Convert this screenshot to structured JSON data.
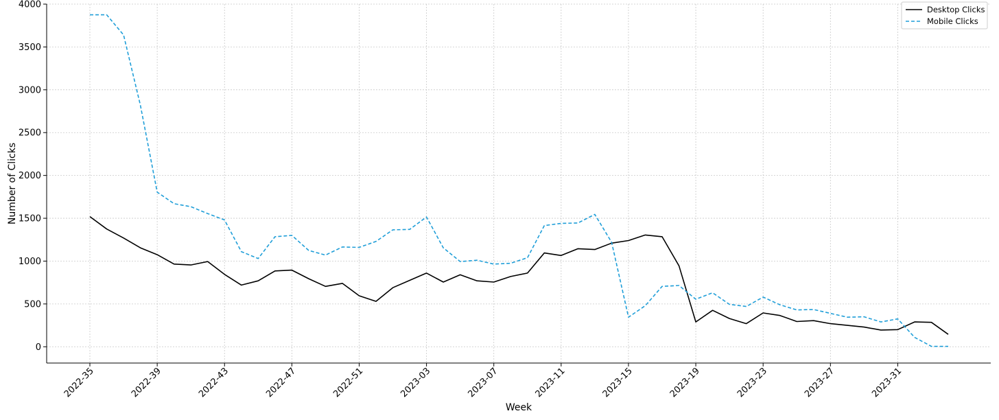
{
  "chart_data": {
    "type": "line",
    "xlabel": "Week",
    "ylabel": "Number of Clicks",
    "ylim": [
      -190,
      4000
    ],
    "yticks": [
      0,
      500,
      1000,
      1500,
      2000,
      2500,
      3000,
      3500,
      4000
    ],
    "xticks": [
      "2022-35",
      "2022-39",
      "2022-43",
      "2022-47",
      "2022-51",
      "2023-03",
      "2023-07",
      "2023-11",
      "2023-15",
      "2023-19",
      "2023-23",
      "2023-27",
      "2023-31"
    ],
    "grid": true,
    "legend_position": "top-right",
    "x": [
      "2022-35",
      "2022-36",
      "2022-37",
      "2022-38",
      "2022-39",
      "2022-40",
      "2022-41",
      "2022-42",
      "2022-43",
      "2022-44",
      "2022-45",
      "2022-46",
      "2022-47",
      "2022-48",
      "2022-49",
      "2022-50",
      "2022-51",
      "2022-52",
      "2023-01",
      "2023-02",
      "2023-03",
      "2023-04",
      "2023-05",
      "2023-06",
      "2023-07",
      "2023-08",
      "2023-09",
      "2023-10",
      "2023-11",
      "2023-12",
      "2023-13",
      "2023-14",
      "2023-15",
      "2023-16",
      "2023-17",
      "2023-18",
      "2023-19",
      "2023-20",
      "2023-21",
      "2023-22",
      "2023-23",
      "2023-24",
      "2023-25",
      "2023-26",
      "2023-27",
      "2023-28",
      "2023-29",
      "2023-30",
      "2023-31",
      "2023-32",
      "2023-33",
      "2023-34"
    ],
    "series": [
      {
        "name": "Desktop Clicks",
        "color": "#000000",
        "style": "solid",
        "values": [
          1520,
          1375,
          1270,
          1155,
          1075,
          965,
          955,
          995,
          845,
          720,
          770,
          885,
          895,
          795,
          705,
          740,
          595,
          530,
          690,
          775,
          860,
          755,
          840,
          770,
          755,
          820,
          860,
          1095,
          1065,
          1145,
          1135,
          1210,
          1240,
          1305,
          1285,
          945,
          290,
          425,
          330,
          270,
          395,
          365,
          295,
          305,
          270,
          250,
          230,
          195,
          200,
          290,
          285,
          145
        ]
      },
      {
        "name": "Mobile Clicks",
        "color": "#1f9ed8",
        "style": "dashed",
        "values": [
          3875,
          3875,
          3640,
          2820,
          1805,
          1670,
          1635,
          1555,
          1480,
          1110,
          1030,
          1285,
          1300,
          1125,
          1070,
          1165,
          1160,
          1230,
          1365,
          1370,
          1515,
          1155,
          995,
          1010,
          965,
          975,
          1040,
          1415,
          1440,
          1445,
          1545,
          1220,
          345,
          480,
          705,
          715,
          555,
          630,
          495,
          470,
          580,
          490,
          430,
          435,
          390,
          345,
          350,
          290,
          325,
          110,
          5,
          5
        ]
      }
    ]
  }
}
